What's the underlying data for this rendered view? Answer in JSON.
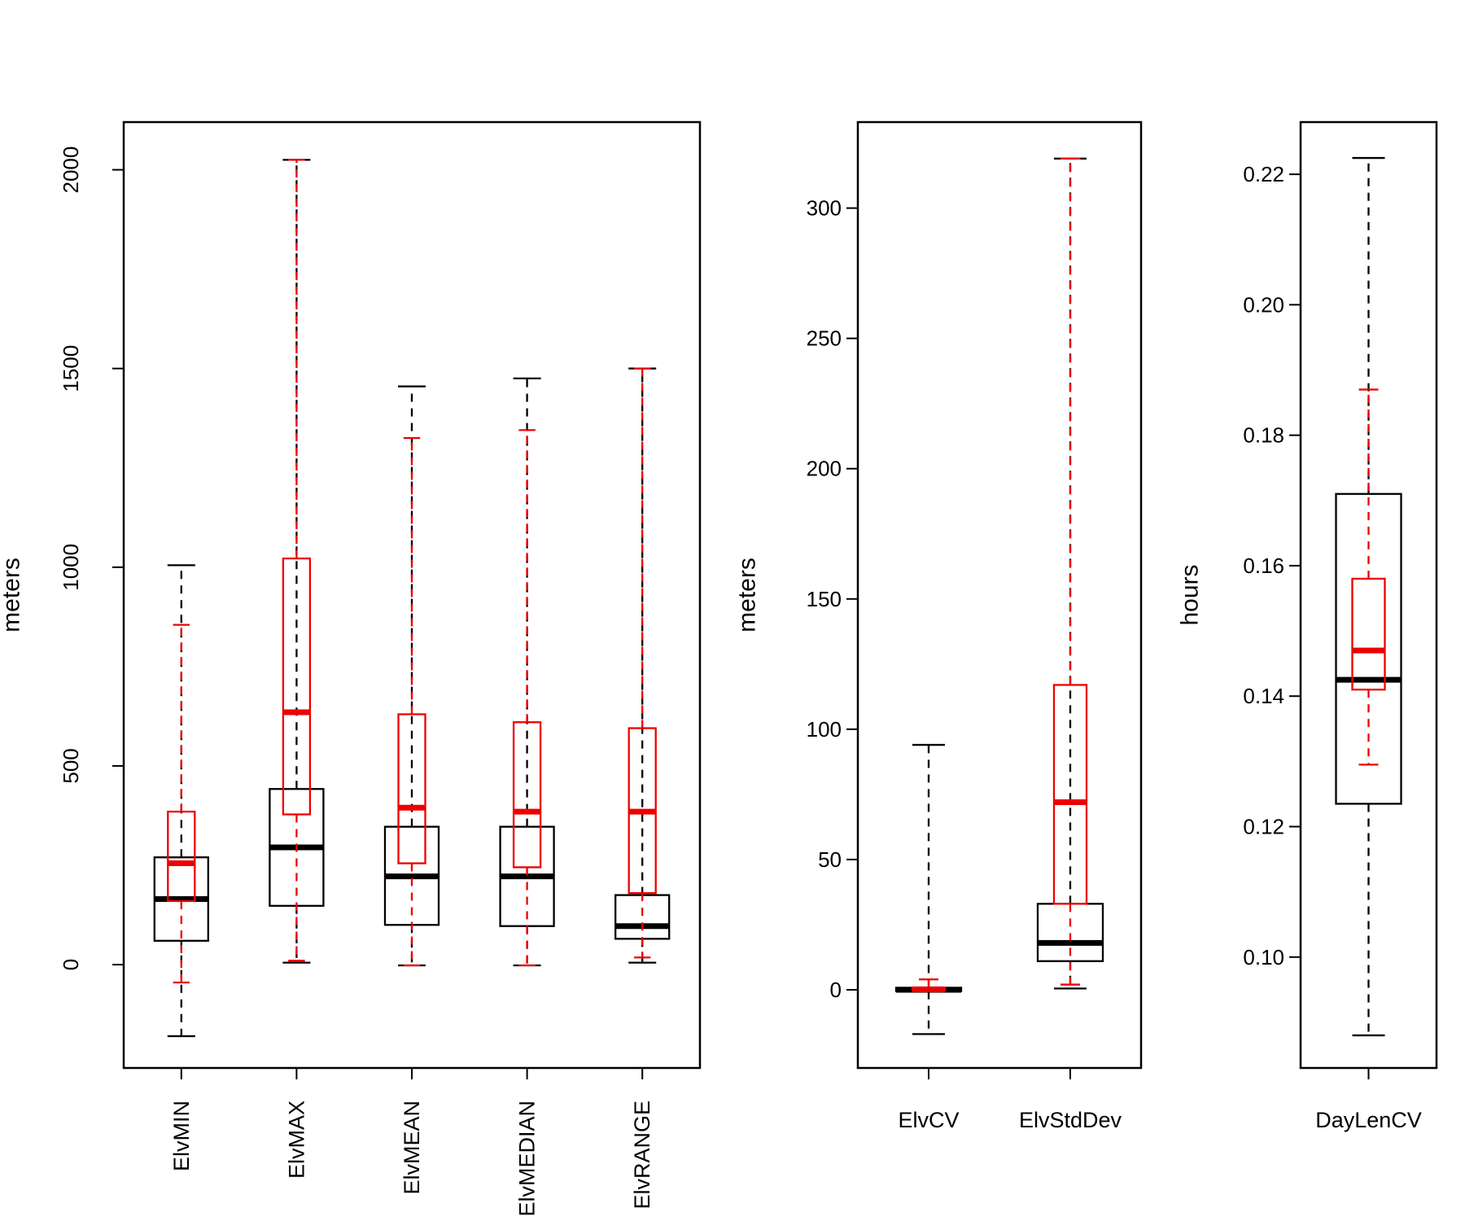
{
  "chart_data": [
    {
      "type": "boxplot",
      "ylabel": "meters",
      "ylim": [
        -260,
        2120
      ],
      "yticks": [
        0,
        500,
        1000,
        1500,
        2000
      ],
      "tick_orientation": "vertical",
      "category_orientation": "vertical",
      "categories": [
        "ElvMIN",
        "ElvMAX",
        "ElvMEAN",
        "ElvMEDIAN",
        "ElvRANGE"
      ],
      "series": [
        {
          "name": "black",
          "color": "#000000",
          "boxes": [
            {
              "lower_whisker": -180,
              "q1": 60,
              "median": 165,
              "q3": 270,
              "upper_whisker": 1005
            },
            {
              "lower_whisker": 5,
              "q1": 148,
              "median": 295,
              "q3": 442,
              "upper_whisker": 2025
            },
            {
              "lower_whisker": -2,
              "q1": 100,
              "median": 222,
              "q3": 347,
              "upper_whisker": 1455
            },
            {
              "lower_whisker": -2,
              "q1": 97,
              "median": 222,
              "q3": 347,
              "upper_whisker": 1475
            },
            {
              "lower_whisker": 5,
              "q1": 65,
              "median": 97,
              "q3": 175,
              "upper_whisker": 1500
            }
          ]
        },
        {
          "name": "red",
          "color": "#ee0000",
          "boxes": [
            {
              "lower_whisker": -45,
              "q1": 160,
              "median": 255,
              "q3": 385,
              "upper_whisker": 855
            },
            {
              "lower_whisker": 10,
              "q1": 378,
              "median": 635,
              "q3": 1022,
              "upper_whisker": 2025
            },
            {
              "lower_whisker": -2,
              "q1": 255,
              "median": 395,
              "q3": 630,
              "upper_whisker": 1325
            },
            {
              "lower_whisker": -2,
              "q1": 245,
              "median": 385,
              "q3": 610,
              "upper_whisker": 1345
            },
            {
              "lower_whisker": 18,
              "q1": 180,
              "median": 385,
              "q3": 595,
              "upper_whisker": 1500
            }
          ]
        }
      ]
    },
    {
      "type": "boxplot",
      "ylabel": "meters",
      "ylim": [
        -30,
        333
      ],
      "yticks": [
        0,
        50,
        100,
        150,
        200,
        250,
        300
      ],
      "tick_orientation": "horizontal",
      "category_orientation": "horizontal",
      "categories": [
        "ElvCV",
        "ElvStdDev"
      ],
      "series": [
        {
          "name": "black",
          "color": "#000000",
          "boxes": [
            {
              "lower_whisker": -17,
              "q1": -0.5,
              "median": 0,
              "q3": 0.8,
              "upper_whisker": 94
            },
            {
              "lower_whisker": 0.5,
              "q1": 11,
              "median": 18,
              "q3": 33,
              "upper_whisker": 319
            }
          ]
        },
        {
          "name": "red",
          "color": "#ee0000",
          "boxes": [
            {
              "lower_whisker": -0.5,
              "q1": -0.2,
              "median": 0.2,
              "q3": 0.8,
              "upper_whisker": 4
            },
            {
              "lower_whisker": 2,
              "q1": 33,
              "median": 72,
              "q3": 117,
              "upper_whisker": 319
            }
          ]
        }
      ]
    },
    {
      "type": "boxplot",
      "ylabel": "hours",
      "ylim": [
        0.083,
        0.228
      ],
      "yticks": [
        0.1,
        0.12,
        0.14,
        0.16,
        0.18,
        0.2,
        0.22
      ],
      "ytick_labels": [
        "0.10",
        "0.12",
        "0.14",
        "0.16",
        "0.18",
        "0.20",
        "0.22"
      ],
      "tick_orientation": "horizontal",
      "category_orientation": "horizontal",
      "categories": [
        "DayLenCV"
      ],
      "series": [
        {
          "name": "black",
          "color": "#000000",
          "boxes": [
            {
              "lower_whisker": 0.088,
              "q1": 0.1235,
              "median": 0.1425,
              "q3": 0.171,
              "upper_whisker": 0.2225
            }
          ]
        },
        {
          "name": "red",
          "color": "#ee0000",
          "boxes": [
            {
              "lower_whisker": 0.1295,
              "q1": 0.141,
              "median": 0.147,
              "q3": 0.158,
              "upper_whisker": 0.187
            }
          ]
        }
      ]
    }
  ]
}
